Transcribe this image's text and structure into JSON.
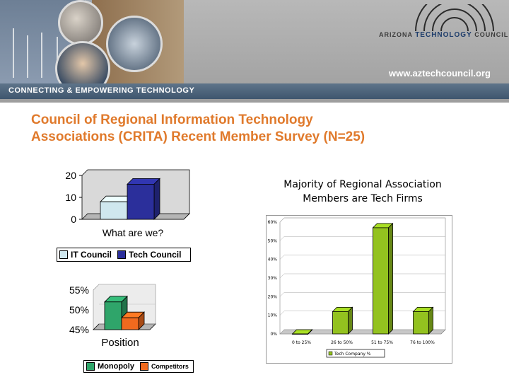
{
  "header": {
    "logo_prefix": "ARIZONA",
    "logo_accent": "TECHNOLOGY",
    "logo_suffix": "COUNCIL",
    "url": "www.aztechcouncil.org",
    "tagline": "CONNECTING & EMPOWERING TECHNOLOGY"
  },
  "slide": {
    "title_line1": "Council of Regional Information Technology",
    "title_line2": "Associations (CRITA) Recent Member Survey (N=25)"
  },
  "colors": {
    "title": "#e07a2c",
    "it_council": "#cfe7ee",
    "tech_council": "#2b2f9b",
    "monopoly": "#2fa56a",
    "competitors": "#f06a1e",
    "tech_company": "#93c21f",
    "banner_bar": "#4a6079"
  },
  "chart_data": [
    {
      "type": "bar",
      "title": "What are we?",
      "categories": [
        "IT Council",
        "Tech Council"
      ],
      "values": [
        8,
        16
      ],
      "ylim": [
        0,
        20
      ],
      "yticks": [
        "0",
        "10",
        "20"
      ],
      "legend": [
        {
          "name": "IT Council",
          "color": "#cfe7ee"
        },
        {
          "name": "Tech Council",
          "color": "#2b2f9b"
        }
      ],
      "legend_position": "bottom"
    },
    {
      "type": "bar",
      "title": "Position",
      "categories": [
        "Monopoly",
        "Competitors"
      ],
      "values": [
        52,
        48
      ],
      "ylim": [
        45,
        55
      ],
      "yticks": [
        "45%",
        "50%",
        "55%"
      ],
      "legend": [
        {
          "name": "Monopoly",
          "color": "#2fa56a"
        },
        {
          "name": "Competitors",
          "color": "#f06a1e"
        }
      ],
      "legend_position": "bottom"
    },
    {
      "type": "bar",
      "title": "Majority of Regional Association Members are Tech Firms",
      "title_line1": "Majority of Regional Association",
      "title_line2": "Members are Tech Firms",
      "categories": [
        "0 to 25%",
        "26 to 50%",
        "51 to 75%",
        "76 to 100%"
      ],
      "series": [
        {
          "name": "Tech Company %",
          "values": [
            0,
            12,
            57,
            12
          ]
        }
      ],
      "ylim": [
        0,
        60
      ],
      "yticks": [
        "0%",
        "10%",
        "20%",
        "30%",
        "40%",
        "50%",
        "60%"
      ],
      "grid": true,
      "legend_position": "bottom"
    }
  ]
}
